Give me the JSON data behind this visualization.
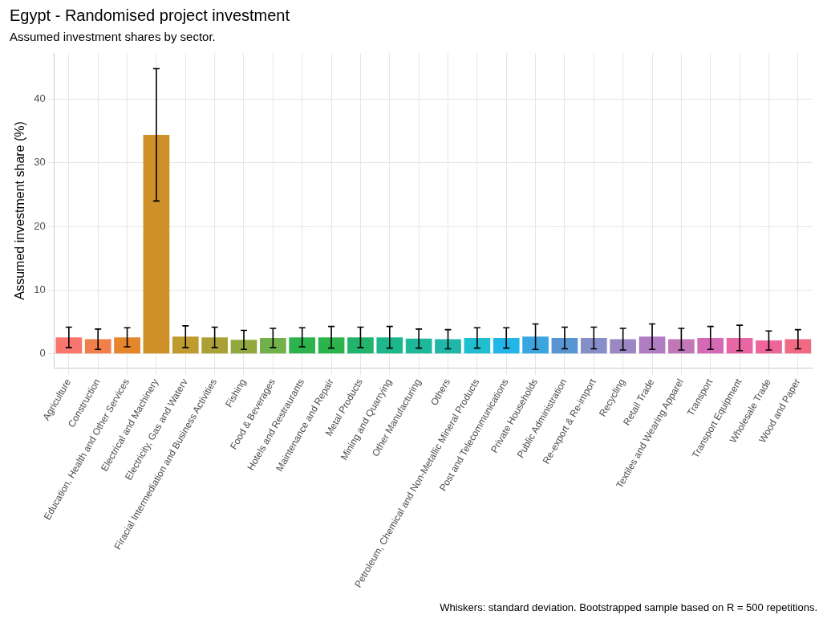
{
  "chart_data": {
    "type": "bar",
    "title": "Egypt - Randomised project investment",
    "subtitle": "Assumed investment shares by sector.",
    "ylabel": "Assumed investment share (%)",
    "categories": [
      "Agriculture",
      "Construction",
      "Education, Health and Other Services",
      "Electrical and Machinery",
      "Electricity, Gas and Waterv",
      "Firacial Intermediation and Business Activities",
      "Fishing",
      "Food & Beverages",
      "Hotels and Restraurants",
      "Maintenance and Repair",
      "Metal Products",
      "Mining and Quarrying",
      "Other Manufacturing",
      "Others",
      "Petroleum, Chemical and Non-Metallic Mineral Products",
      "Post and Telecommunications",
      "Private Households",
      "Public Administration",
      "Re-export & Re-import",
      "Recycling",
      "Retail Trade",
      "Textiles and Wearing Apparel",
      "Transport",
      "Transport Equipment",
      "Wholesale Trade",
      "Wood and Paper"
    ],
    "values": [
      2.6,
      2.3,
      2.6,
      34.4,
      2.7,
      2.6,
      2.2,
      2.5,
      2.6,
      2.6,
      2.6,
      2.6,
      2.4,
      2.3,
      2.5,
      2.5,
      2.7,
      2.5,
      2.5,
      2.3,
      2.7,
      2.3,
      2.5,
      2.5,
      2.1,
      2.3
    ],
    "errors": [
      1.6,
      1.6,
      1.5,
      10.4,
      1.7,
      1.6,
      1.5,
      1.5,
      1.5,
      1.7,
      1.6,
      1.7,
      1.5,
      1.5,
      1.6,
      1.6,
      2.0,
      1.7,
      1.7,
      1.7,
      2.0,
      1.7,
      1.8,
      2.0,
      1.5,
      1.5
    ],
    "colors": [
      "#F8766D",
      "#F07F4A",
      "#E6862C",
      "#CF9127",
      "#BF9A2F",
      "#AAA035",
      "#92A83E",
      "#71B04B",
      "#2CB34E",
      "#2BB44B",
      "#22B46C",
      "#1CB78B",
      "#1DB89A",
      "#20B6A8",
      "#1FBFD0",
      "#22B5E8",
      "#3BA5DF",
      "#5A95D3",
      "#878FC8",
      "#9C87C5",
      "#B07DC3",
      "#C078B8",
      "#D56AB4",
      "#E766A3",
      "#EE6599",
      "#F06A84"
    ],
    "ylim": [
      -2.25,
      47.25
    ],
    "yticks": [
      0,
      10,
      20,
      30,
      40
    ],
    "grid": true,
    "legend": false,
    "annotations": [
      "Whiskers: standard deviation. Bootstrapped sample based on R = 500 repetitions."
    ]
  }
}
